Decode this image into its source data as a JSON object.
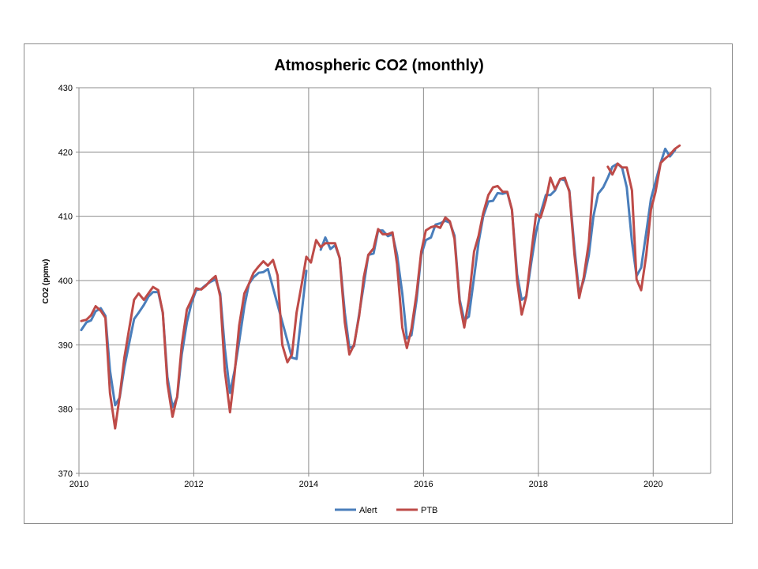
{
  "chart_data": {
    "type": "line",
    "title": "Atmospheric CO2 (monthly)",
    "xlabel": "",
    "ylabel": "CO2 (ppmv)",
    "xlim": [
      2010,
      2021
    ],
    "ylim": [
      370,
      430
    ],
    "x_ticks": [
      2010,
      2012,
      2014,
      2016,
      2018,
      2020
    ],
    "y_ticks": [
      370,
      380,
      390,
      400,
      410,
      420,
      430
    ],
    "grid": true,
    "legend": "bottom",
    "series": [
      {
        "name": "Alert",
        "color": "#4a7ebb",
        "points": [
          [
            2010.04,
            392.3
          ],
          [
            2010.13,
            393.5
          ],
          [
            2010.21,
            393.8
          ],
          [
            2010.29,
            395.2
          ],
          [
            2010.38,
            395.7
          ],
          [
            2010.46,
            394.5
          ],
          [
            2010.54,
            386.0
          ],
          [
            2010.63,
            380.6
          ],
          [
            2010.71,
            381.8
          ],
          [
            2010.79,
            386.5
          ],
          [
            2010.88,
            390.5
          ],
          [
            2010.96,
            394.0
          ],
          [
            2011.04,
            395.0
          ],
          [
            2011.13,
            396.2
          ],
          [
            2011.21,
            397.5
          ],
          [
            2011.29,
            398.2
          ],
          [
            2011.38,
            398.2
          ],
          [
            2011.46,
            395.0
          ],
          [
            2011.54,
            385.0
          ],
          [
            2011.63,
            380.3
          ],
          [
            2011.71,
            381.8
          ],
          [
            2011.79,
            388.5
          ],
          [
            2011.88,
            393.5
          ],
          [
            2011.96,
            396.5
          ],
          [
            2012.04,
            398.5
          ],
          [
            2012.13,
            398.7
          ],
          [
            2012.21,
            399.3
          ],
          [
            2012.29,
            399.8
          ],
          [
            2012.38,
            400.2
          ],
          [
            2012.46,
            398.0
          ],
          [
            2012.54,
            389.5
          ],
          [
            2012.63,
            382.5
          ],
          [
            2012.71,
            386.0
          ],
          [
            2012.79,
            390.5
          ],
          [
            2012.88,
            396.0
          ],
          [
            2012.96,
            399.5
          ],
          [
            2013.04,
            400.5
          ],
          [
            2013.13,
            401.2
          ],
          [
            2013.21,
            401.3
          ],
          [
            2013.29,
            401.8
          ],
          [
            2013.71,
            388.0
          ],
          [
            2013.79,
            387.8
          ],
          [
            2013.96,
            401.5
          ],
          [
            2014.04,
            null
          ],
          [
            2014.21,
            404.8
          ],
          [
            2014.29,
            406.7
          ],
          [
            2014.38,
            404.9
          ],
          [
            2014.46,
            405.5
          ],
          [
            2014.54,
            403.5
          ],
          [
            2014.63,
            395.0
          ],
          [
            2014.71,
            389.5
          ],
          [
            2014.79,
            389.8
          ],
          [
            2014.96,
            399.3
          ],
          [
            2015.04,
            404.0
          ],
          [
            2015.13,
            404.2
          ],
          [
            2015.21,
            407.8
          ],
          [
            2015.29,
            407.8
          ],
          [
            2015.38,
            406.9
          ],
          [
            2015.46,
            407.2
          ],
          [
            2015.54,
            404.0
          ],
          [
            2015.63,
            398.0
          ],
          [
            2015.71,
            391.0
          ],
          [
            2015.79,
            391.5
          ],
          [
            2015.88,
            397.0
          ],
          [
            2015.96,
            404.0
          ],
          [
            2016.04,
            406.3
          ],
          [
            2016.13,
            406.7
          ],
          [
            2016.21,
            408.7
          ],
          [
            2016.29,
            408.9
          ],
          [
            2016.38,
            409.3
          ],
          [
            2016.46,
            409.0
          ],
          [
            2016.54,
            407.0
          ],
          [
            2016.63,
            397.0
          ],
          [
            2016.71,
            393.8
          ],
          [
            2016.79,
            394.4
          ],
          [
            2016.88,
            400.5
          ],
          [
            2016.96,
            406.0
          ],
          [
            2017.04,
            410.0
          ],
          [
            2017.13,
            412.3
          ],
          [
            2017.21,
            412.4
          ],
          [
            2017.29,
            413.6
          ],
          [
            2017.38,
            413.5
          ],
          [
            2017.46,
            413.7
          ],
          [
            2017.54,
            411.0
          ],
          [
            2017.63,
            401.0
          ],
          [
            2017.71,
            397.0
          ],
          [
            2017.79,
            397.5
          ],
          [
            2017.88,
            403.0
          ],
          [
            2017.96,
            407.5
          ],
          [
            2018.04,
            410.5
          ],
          [
            2018.13,
            413.3
          ],
          [
            2018.21,
            413.3
          ],
          [
            2018.29,
            414.0
          ],
          [
            2018.38,
            415.8
          ],
          [
            2018.46,
            415.6
          ],
          [
            2018.54,
            414.0
          ],
          [
            2018.63,
            405.0
          ],
          [
            2018.71,
            398.0
          ],
          [
            2018.79,
            400.0
          ],
          [
            2018.88,
            404.0
          ],
          [
            2018.96,
            410.0
          ],
          [
            2019.04,
            413.5
          ],
          [
            2019.13,
            414.5
          ],
          [
            2019.21,
            416.0
          ],
          [
            2019.29,
            417.7
          ],
          [
            2019.38,
            418.2
          ],
          [
            2019.46,
            417.5
          ],
          [
            2019.54,
            414.5
          ],
          [
            2019.63,
            406.0
          ],
          [
            2019.71,
            400.7
          ],
          [
            2019.79,
            402.0
          ],
          [
            2019.88,
            407.5
          ],
          [
            2019.96,
            412.7
          ],
          [
            2020.13,
            418.3
          ],
          [
            2020.21,
            420.5
          ],
          [
            2020.29,
            419.3
          ],
          [
            2020.38,
            420.3
          ]
        ]
      },
      {
        "name": "PTB",
        "color": "#be4b48",
        "points": [
          [
            2010.04,
            393.7
          ],
          [
            2010.13,
            393.9
          ],
          [
            2010.21,
            394.6
          ],
          [
            2010.29,
            396.0
          ],
          [
            2010.38,
            395.3
          ],
          [
            2010.46,
            394.2
          ],
          [
            2010.54,
            382.5
          ],
          [
            2010.63,
            377.0
          ],
          [
            2010.71,
            382.0
          ],
          [
            2010.79,
            388.0
          ],
          [
            2010.88,
            392.8
          ],
          [
            2010.96,
            397.0
          ],
          [
            2011.04,
            398.0
          ],
          [
            2011.13,
            397.0
          ],
          [
            2011.21,
            398.0
          ],
          [
            2011.29,
            399.0
          ],
          [
            2011.38,
            398.5
          ],
          [
            2011.46,
            395.0
          ],
          [
            2011.54,
            384.0
          ],
          [
            2011.63,
            378.8
          ],
          [
            2011.71,
            382.0
          ],
          [
            2011.79,
            390.0
          ],
          [
            2011.88,
            395.5
          ],
          [
            2011.96,
            397.0
          ],
          [
            2012.04,
            398.8
          ],
          [
            2012.13,
            398.6
          ],
          [
            2012.21,
            399.2
          ],
          [
            2012.29,
            400.0
          ],
          [
            2012.38,
            400.7
          ],
          [
            2012.46,
            397.5
          ],
          [
            2012.54,
            386.0
          ],
          [
            2012.63,
            379.5
          ],
          [
            2012.71,
            385.5
          ],
          [
            2012.79,
            393.0
          ],
          [
            2012.88,
            398.0
          ],
          [
            2012.96,
            399.5
          ],
          [
            2013.04,
            401.2
          ],
          [
            2013.13,
            402.2
          ],
          [
            2013.21,
            403.0
          ],
          [
            2013.29,
            402.3
          ],
          [
            2013.38,
            403.2
          ],
          [
            2013.46,
            400.8
          ],
          [
            2013.54,
            390.0
          ],
          [
            2013.63,
            387.3
          ],
          [
            2013.71,
            388.5
          ],
          [
            2013.79,
            395.0
          ],
          [
            2013.88,
            399.5
          ],
          [
            2013.96,
            403.7
          ],
          [
            2014.04,
            402.8
          ],
          [
            2014.13,
            406.3
          ],
          [
            2014.21,
            405.2
          ],
          [
            2014.29,
            405.8
          ],
          [
            2014.38,
            405.8
          ],
          [
            2014.46,
            405.8
          ],
          [
            2014.54,
            403.5
          ],
          [
            2014.63,
            393.5
          ],
          [
            2014.71,
            388.5
          ],
          [
            2014.79,
            390.0
          ],
          [
            2014.88,
            394.5
          ],
          [
            2014.96,
            400.5
          ],
          [
            2015.04,
            404.0
          ],
          [
            2015.13,
            405.0
          ],
          [
            2015.21,
            408.0
          ],
          [
            2015.29,
            407.2
          ],
          [
            2015.38,
            407.2
          ],
          [
            2015.46,
            407.5
          ],
          [
            2015.54,
            402.5
          ],
          [
            2015.63,
            392.7
          ],
          [
            2015.71,
            389.5
          ],
          [
            2015.79,
            392.5
          ],
          [
            2015.88,
            398.0
          ],
          [
            2015.96,
            404.5
          ],
          [
            2016.04,
            407.8
          ],
          [
            2016.13,
            408.3
          ],
          [
            2016.21,
            408.5
          ],
          [
            2016.29,
            408.2
          ],
          [
            2016.38,
            409.8
          ],
          [
            2016.46,
            409.2
          ],
          [
            2016.54,
            406.5
          ],
          [
            2016.63,
            396.5
          ],
          [
            2016.71,
            392.7
          ],
          [
            2016.79,
            397.0
          ],
          [
            2016.88,
            404.5
          ],
          [
            2016.96,
            407.0
          ],
          [
            2017.04,
            410.5
          ],
          [
            2017.13,
            413.3
          ],
          [
            2017.21,
            414.5
          ],
          [
            2017.29,
            414.7
          ],
          [
            2017.38,
            413.8
          ],
          [
            2017.46,
            413.8
          ],
          [
            2017.54,
            411.0
          ],
          [
            2017.63,
            400.0
          ],
          [
            2017.71,
            394.7
          ],
          [
            2017.79,
            397.5
          ],
          [
            2017.88,
            404.5
          ],
          [
            2017.96,
            410.3
          ],
          [
            2018.04,
            409.8
          ],
          [
            2018.13,
            412.5
          ],
          [
            2018.21,
            416.0
          ],
          [
            2018.29,
            414.2
          ],
          [
            2018.38,
            415.8
          ],
          [
            2018.46,
            416.0
          ],
          [
            2018.54,
            413.8
          ],
          [
            2018.63,
            404.0
          ],
          [
            2018.71,
            397.3
          ],
          [
            2018.79,
            400.5
          ],
          [
            2018.88,
            406.0
          ],
          [
            2018.96,
            416.0
          ],
          [
            2019.04,
            null
          ],
          [
            2019.21,
            417.7
          ],
          [
            2019.29,
            416.5
          ],
          [
            2019.38,
            418.2
          ],
          [
            2019.46,
            417.6
          ],
          [
            2019.54,
            417.6
          ],
          [
            2019.63,
            414.0
          ],
          [
            2019.71,
            400.2
          ],
          [
            2019.79,
            398.5
          ],
          [
            2019.88,
            404.0
          ],
          [
            2019.96,
            411.0
          ],
          [
            2020.04,
            413.8
          ],
          [
            2020.13,
            418.3
          ],
          [
            2020.21,
            419.0
          ],
          [
            2020.29,
            419.6
          ],
          [
            2020.38,
            420.5
          ],
          [
            2020.46,
            421.0
          ]
        ]
      }
    ]
  }
}
